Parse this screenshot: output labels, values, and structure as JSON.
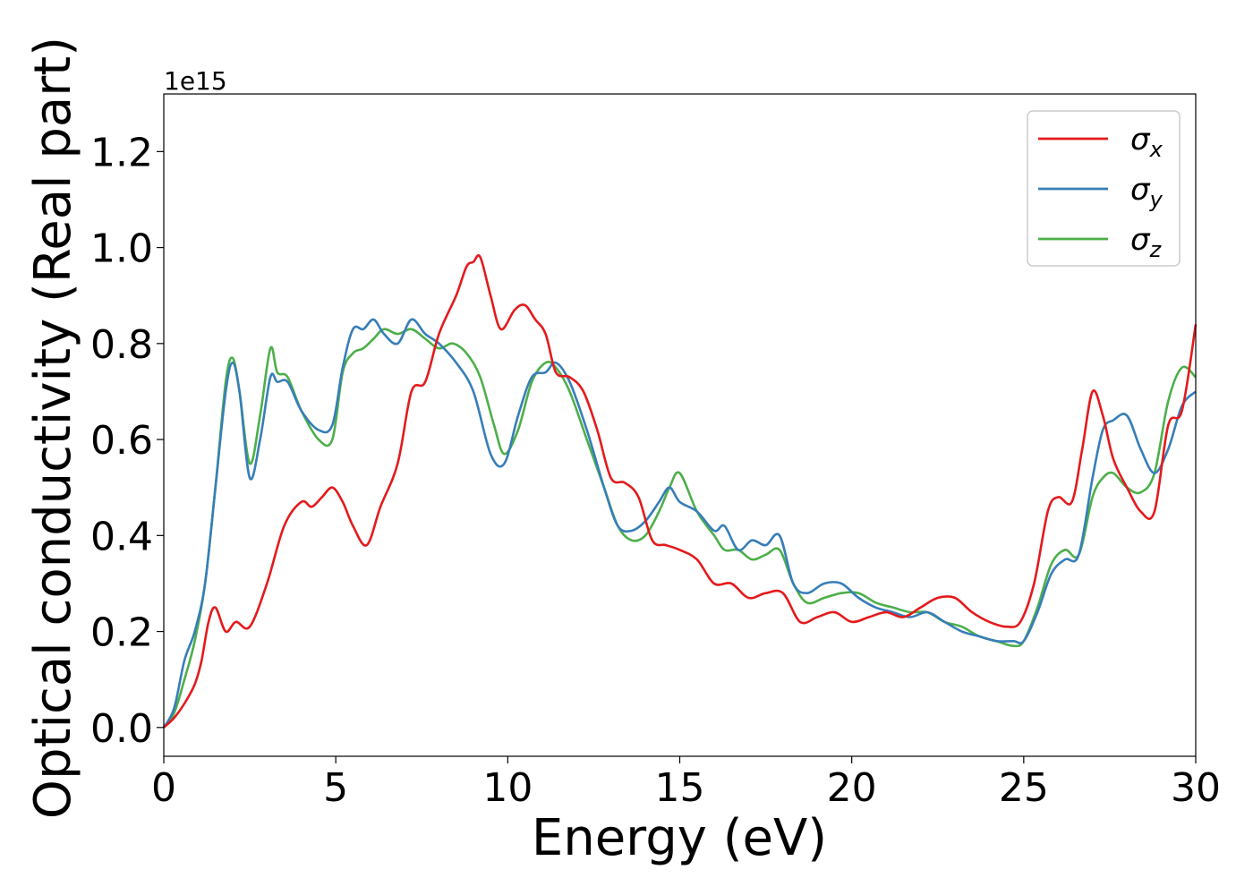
{
  "chart_data": {
    "type": "line",
    "xlabel": "Energy (eV)",
    "ylabel": "Optical conductivity (Real part)",
    "y_offset_label": "1e15",
    "xlim": [
      0,
      30
    ],
    "ylim": [
      -0.06,
      1.32
    ],
    "x_ticks": [
      0,
      5,
      10,
      15,
      20,
      25,
      30
    ],
    "x_tick_labels": [
      "0",
      "5",
      "10",
      "15",
      "20",
      "25",
      "30"
    ],
    "y_ticks": [
      0.0,
      0.2,
      0.4,
      0.6,
      0.8,
      1.0,
      1.2
    ],
    "y_tick_labels": [
      "0.0",
      "0.2",
      "0.4",
      "0.6",
      "0.8",
      "1.0",
      "1.2"
    ],
    "grid": false,
    "legend_position": "top-right",
    "series": [
      {
        "name": "σx",
        "legend_base": "σ",
        "legend_sub": "x",
        "color": "#e41a1c",
        "x": [
          0,
          0.3,
          0.6,
          0.9,
          1.1,
          1.3,
          1.5,
          1.8,
          2.1,
          2.5,
          3.0,
          3.5,
          4.0,
          4.3,
          4.6,
          4.9,
          5.2,
          5.5,
          5.9,
          6.3,
          6.8,
          7.2,
          7.6,
          8.0,
          8.5,
          8.8,
          9.0,
          9.2,
          9.5,
          9.8,
          10.2,
          10.5,
          10.8,
          11.1,
          11.4,
          11.8,
          12.2,
          12.6,
          13.0,
          13.4,
          13.8,
          14.2,
          14.6,
          15.0,
          15.5,
          16.0,
          16.5,
          17.0,
          17.5,
          18.0,
          18.5,
          19.0,
          19.5,
          20.0,
          20.5,
          21.0,
          21.5,
          22.0,
          22.5,
          23.0,
          23.5,
          24.0,
          24.5,
          24.9,
          25.3,
          25.7,
          26.0,
          26.4,
          26.7,
          27.0,
          27.3,
          27.6,
          28.0,
          28.4,
          28.8,
          29.2,
          29.6,
          30.0
        ],
        "y": [
          0.0,
          0.02,
          0.05,
          0.09,
          0.14,
          0.22,
          0.25,
          0.2,
          0.22,
          0.21,
          0.3,
          0.42,
          0.47,
          0.46,
          0.48,
          0.5,
          0.47,
          0.42,
          0.38,
          0.46,
          0.55,
          0.7,
          0.72,
          0.82,
          0.9,
          0.96,
          0.97,
          0.98,
          0.9,
          0.83,
          0.87,
          0.88,
          0.85,
          0.82,
          0.74,
          0.73,
          0.7,
          0.62,
          0.52,
          0.51,
          0.48,
          0.39,
          0.38,
          0.37,
          0.35,
          0.3,
          0.3,
          0.27,
          0.28,
          0.28,
          0.22,
          0.23,
          0.24,
          0.22,
          0.23,
          0.24,
          0.23,
          0.25,
          0.27,
          0.27,
          0.24,
          0.22,
          0.21,
          0.22,
          0.3,
          0.45,
          0.48,
          0.47,
          0.58,
          0.7,
          0.65,
          0.56,
          0.5,
          0.45,
          0.45,
          0.63,
          0.66,
          0.84
        ]
      },
      {
        "name": "σy",
        "legend_base": "σ",
        "legend_sub": "y",
        "color": "#377eb8",
        "x": [
          0,
          0.3,
          0.6,
          0.9,
          1.2,
          1.5,
          1.8,
          2.0,
          2.2,
          2.5,
          2.8,
          3.1,
          3.3,
          3.6,
          4.0,
          4.5,
          4.9,
          5.2,
          5.5,
          5.8,
          6.1,
          6.4,
          6.8,
          7.2,
          7.6,
          8.0,
          8.5,
          9.0,
          9.5,
          9.9,
          10.3,
          10.7,
          11.1,
          11.4,
          11.8,
          12.3,
          12.8,
          13.2,
          13.6,
          14.0,
          14.4,
          14.7,
          15.0,
          15.5,
          16.0,
          16.3,
          16.7,
          17.1,
          17.5,
          17.9,
          18.3,
          18.7,
          19.2,
          19.7,
          20.2,
          20.7,
          21.2,
          21.7,
          22.2,
          22.7,
          23.2,
          23.7,
          24.2,
          24.7,
          25.0,
          25.4,
          25.8,
          26.2,
          26.6,
          27.0,
          27.3,
          27.6,
          28.0,
          28.4,
          28.8,
          29.2,
          29.6,
          30.0
        ],
        "y": [
          0.0,
          0.04,
          0.14,
          0.2,
          0.3,
          0.5,
          0.7,
          0.76,
          0.7,
          0.52,
          0.6,
          0.73,
          0.72,
          0.72,
          0.66,
          0.62,
          0.63,
          0.75,
          0.83,
          0.83,
          0.85,
          0.82,
          0.8,
          0.85,
          0.82,
          0.8,
          0.76,
          0.7,
          0.57,
          0.55,
          0.65,
          0.73,
          0.74,
          0.76,
          0.72,
          0.62,
          0.5,
          0.42,
          0.41,
          0.43,
          0.47,
          0.5,
          0.47,
          0.45,
          0.41,
          0.42,
          0.37,
          0.39,
          0.38,
          0.4,
          0.3,
          0.28,
          0.3,
          0.3,
          0.27,
          0.25,
          0.24,
          0.23,
          0.24,
          0.22,
          0.2,
          0.19,
          0.18,
          0.18,
          0.18,
          0.24,
          0.32,
          0.35,
          0.36,
          0.52,
          0.62,
          0.64,
          0.65,
          0.58,
          0.53,
          0.58,
          0.67,
          0.7
        ]
      },
      {
        "name": "σz",
        "legend_base": "σ",
        "legend_sub": "z",
        "color": "#4daf4a",
        "x": [
          0,
          0.3,
          0.6,
          0.9,
          1.2,
          1.5,
          1.8,
          2.0,
          2.2,
          2.5,
          2.8,
          3.1,
          3.3,
          3.6,
          4.0,
          4.5,
          4.9,
          5.2,
          5.5,
          5.8,
          6.1,
          6.4,
          6.8,
          7.2,
          7.6,
          8.0,
          8.4,
          8.8,
          9.2,
          9.6,
          9.9,
          10.3,
          10.7,
          11.1,
          11.4,
          11.8,
          12.3,
          12.8,
          13.2,
          13.6,
          14.0,
          14.4,
          14.7,
          15.0,
          15.5,
          16.0,
          16.3,
          16.7,
          17.1,
          17.5,
          17.9,
          18.3,
          18.7,
          19.2,
          19.7,
          20.2,
          20.7,
          21.2,
          21.7,
          22.2,
          22.7,
          23.2,
          23.7,
          24.2,
          24.7,
          25.0,
          25.4,
          25.8,
          26.2,
          26.6,
          27.0,
          27.3,
          27.6,
          28.0,
          28.4,
          28.8,
          29.2,
          29.6,
          30.0
        ],
        "y": [
          0.0,
          0.03,
          0.1,
          0.18,
          0.3,
          0.5,
          0.72,
          0.77,
          0.7,
          0.55,
          0.65,
          0.79,
          0.74,
          0.73,
          0.66,
          0.6,
          0.6,
          0.74,
          0.78,
          0.79,
          0.81,
          0.83,
          0.82,
          0.83,
          0.81,
          0.79,
          0.8,
          0.78,
          0.73,
          0.63,
          0.57,
          0.62,
          0.72,
          0.76,
          0.75,
          0.7,
          0.6,
          0.5,
          0.42,
          0.39,
          0.4,
          0.45,
          0.5,
          0.53,
          0.45,
          0.4,
          0.37,
          0.37,
          0.35,
          0.36,
          0.37,
          0.3,
          0.26,
          0.27,
          0.28,
          0.28,
          0.26,
          0.25,
          0.24,
          0.24,
          0.22,
          0.21,
          0.19,
          0.18,
          0.17,
          0.18,
          0.25,
          0.34,
          0.37,
          0.36,
          0.48,
          0.52,
          0.53,
          0.5,
          0.49,
          0.53,
          0.68,
          0.75,
          0.73
        ]
      }
    ]
  }
}
